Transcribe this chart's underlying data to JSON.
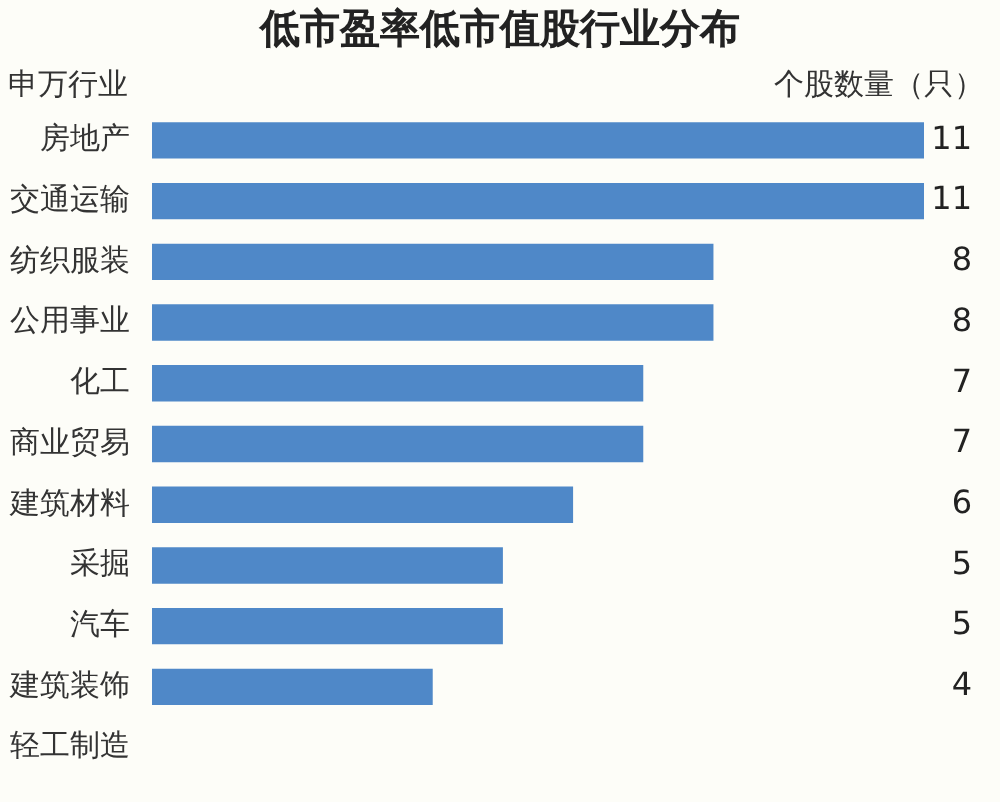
{
  "chart_data": {
    "type": "bar",
    "orientation": "horizontal",
    "title": "低市盈率低市值股行业分布",
    "ylabel": "申万行业",
    "xlabel": "个股数量（只）",
    "categories": [
      "房地产",
      "交通运输",
      "纺织服装",
      "公用事业",
      "化工",
      "商业贸易",
      "建筑材料",
      "采掘",
      "汽车",
      "建筑装饰",
      "轻工制造"
    ],
    "values": [
      11,
      11,
      8,
      8,
      7,
      7,
      6,
      5,
      5,
      4,
      null
    ],
    "color": "#4f88c8",
    "data_labels": true,
    "legend": false,
    "grid": false
  }
}
